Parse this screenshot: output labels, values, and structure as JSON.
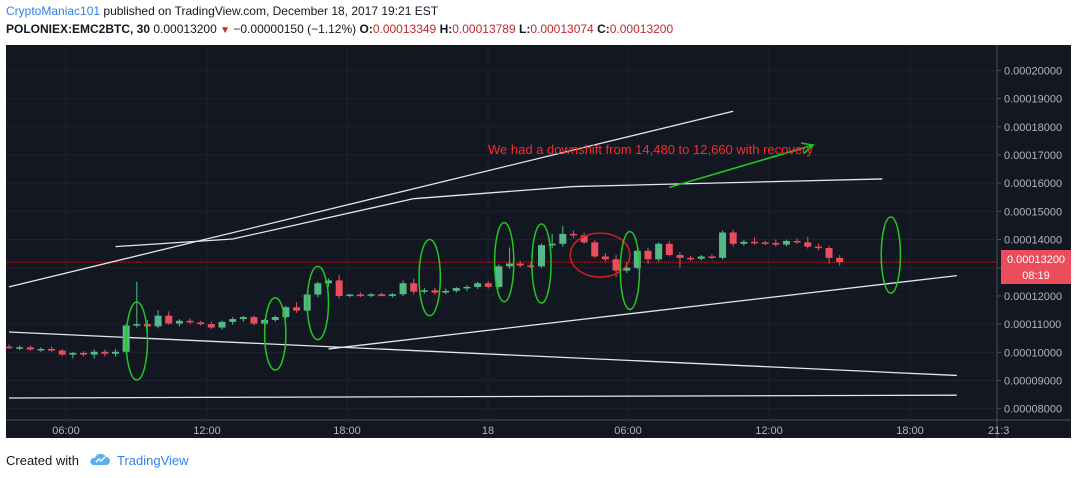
{
  "header": {
    "author": "CryptoManiac101",
    "published_text": "published on TradingView.com, December 18, 2017 19:21 EST",
    "symbol": "POLONIEX:EMC2BTC, 30",
    "last": "0.00013200",
    "change": "−0.00000150 (−1.12%)",
    "open_label": "O:",
    "open": "0.00013349",
    "high_label": "H:",
    "high": "0.00013789",
    "low_label": "L:",
    "low": "0.00013074",
    "close_label": "C:",
    "close": "0.00013200"
  },
  "footer": {
    "created_with": "Created with",
    "brand": "TradingView"
  },
  "chart_data": {
    "type": "candlestick",
    "price_range": [
      7.6e-05,
      0.000209
    ],
    "y_ticks": [
      "0.00008000",
      "0.00009000",
      "0.00010000",
      "0.00011000",
      "0.00012000",
      "0.00013000",
      "0.00014000",
      "0.00015000",
      "0.00016000",
      "0.00017000",
      "0.00018000",
      "0.00019000",
      "0.00020000"
    ],
    "x_ticks": [
      "06:00",
      "12:00",
      "18:00",
      "18",
      "06:00",
      "12:00",
      "18:00",
      "21:3"
    ],
    "last_price_label": "0.00013200",
    "countdown_label": "08:19",
    "annotation": "We had a downshift from 14,480 to 12,660 with recovery",
    "colors": {
      "up": "#53b987",
      "down": "#eb4d5c",
      "background": "#131722",
      "annotation": "#ff2a2a",
      "ellipse": "#22c722",
      "arrow": "#22c722",
      "trendline": "#e6e6e6",
      "price_line": "#c62828"
    },
    "candles": [
      {
        "o": 0.000102,
        "h": 0.0001028,
        "l": 0.0001012,
        "c": 0.0001015
      },
      {
        "o": 0.0001015,
        "h": 0.0001025,
        "l": 0.0001008,
        "c": 0.0001018
      },
      {
        "o": 0.0001018,
        "h": 0.0001024,
        "l": 0.0001006,
        "c": 0.000101
      },
      {
        "o": 0.000101,
        "h": 0.0001018,
        "l": 0.0001002,
        "c": 0.0001012
      },
      {
        "o": 0.0001012,
        "h": 0.000102,
        "l": 0.0001003,
        "c": 0.0001006
      },
      {
        "o": 0.0001006,
        "h": 0.0001012,
        "l": 9.88e-05,
        "c": 9.92e-05
      },
      {
        "o": 9.92e-05,
        "h": 0.0001002,
        "l": 9.78e-05,
        "c": 9.98e-05
      },
      {
        "o": 9.98e-05,
        "h": 0.0001004,
        "l": 9.85e-05,
        "c": 9.92e-05
      },
      {
        "o": 9.92e-05,
        "h": 0.000101,
        "l": 9.78e-05,
        "c": 0.0001002
      },
      {
        "o": 0.0001002,
        "h": 0.000101,
        "l": 9.85e-05,
        "c": 9.95e-05
      },
      {
        "o": 9.95e-05,
        "h": 0.0001012,
        "l": 9.85e-05,
        "c": 0.0001002
      },
      {
        "o": 0.0001002,
        "h": 0.00011,
        "l": 9.95e-05,
        "c": 0.0001095
      },
      {
        "o": 0.0001095,
        "h": 0.000125,
        "l": 0.0001088,
        "c": 0.00011
      },
      {
        "o": 0.00011,
        "h": 0.0001115,
        "l": 0.000108,
        "c": 0.0001092
      },
      {
        "o": 0.0001092,
        "h": 0.000115,
        "l": 0.0001085,
        "c": 0.000113
      },
      {
        "o": 0.000113,
        "h": 0.0001145,
        "l": 0.0001098,
        "c": 0.0001102
      },
      {
        "o": 0.0001102,
        "h": 0.0001118,
        "l": 0.0001092,
        "c": 0.0001112
      },
      {
        "o": 0.0001112,
        "h": 0.000112,
        "l": 0.00011,
        "c": 0.0001106
      },
      {
        "o": 0.0001106,
        "h": 0.0001112,
        "l": 0.0001095,
        "c": 0.00011
      },
      {
        "o": 0.00011,
        "h": 0.000111,
        "l": 0.0001082,
        "c": 0.0001088
      },
      {
        "o": 0.0001088,
        "h": 0.0001112,
        "l": 0.000108,
        "c": 0.0001108
      },
      {
        "o": 0.0001108,
        "h": 0.0001125,
        "l": 0.0001098,
        "c": 0.0001118
      },
      {
        "o": 0.0001118,
        "h": 0.000113,
        "l": 0.0001108,
        "c": 0.0001125
      },
      {
        "o": 0.0001125,
        "h": 0.000113,
        "l": 0.0001095,
        "c": 0.0001102
      },
      {
        "o": 0.0001102,
        "h": 0.0001118,
        "l": 0.0001095,
        "c": 0.0001115
      },
      {
        "o": 0.0001115,
        "h": 0.000113,
        "l": 0.0001108,
        "c": 0.0001125
      },
      {
        "o": 0.0001125,
        "h": 0.0001165,
        "l": 0.000112,
        "c": 0.000116
      },
      {
        "o": 0.000116,
        "h": 0.0001178,
        "l": 0.000114,
        "c": 0.0001148
      },
      {
        "o": 0.0001148,
        "h": 0.0001212,
        "l": 0.000114,
        "c": 0.0001205
      },
      {
        "o": 0.0001205,
        "h": 0.000125,
        "l": 0.0001195,
        "c": 0.0001245
      },
      {
        "o": 0.0001245,
        "h": 0.0001262,
        "l": 0.0001232,
        "c": 0.0001255
      },
      {
        "o": 0.0001255,
        "h": 0.0001275,
        "l": 0.000119,
        "c": 0.00012
      },
      {
        "o": 0.00012,
        "h": 0.0001208,
        "l": 0.0001195,
        "c": 0.0001205
      },
      {
        "o": 0.0001205,
        "h": 0.0001212,
        "l": 0.0001196,
        "c": 0.0001202
      },
      {
        "o": 0.0001202,
        "h": 0.000121,
        "l": 0.0001195,
        "c": 0.0001206
      },
      {
        "o": 0.0001206,
        "h": 0.0001212,
        "l": 0.0001198,
        "c": 0.00012
      },
      {
        "o": 0.00012,
        "h": 0.000121,
        "l": 0.0001194,
        "c": 0.0001206
      },
      {
        "o": 0.0001206,
        "h": 0.0001255,
        "l": 0.00012,
        "c": 0.0001245
      },
      {
        "o": 0.0001245,
        "h": 0.0001262,
        "l": 0.0001205,
        "c": 0.0001215
      },
      {
        "o": 0.0001215,
        "h": 0.0001228,
        "l": 0.0001208,
        "c": 0.000122
      },
      {
        "o": 0.000122,
        "h": 0.0001228,
        "l": 0.0001205,
        "c": 0.0001212
      },
      {
        "o": 0.0001212,
        "h": 0.0001226,
        "l": 0.0001206,
        "c": 0.0001218
      },
      {
        "o": 0.0001218,
        "h": 0.0001232,
        "l": 0.0001212,
        "c": 0.0001228
      },
      {
        "o": 0.0001228,
        "h": 0.0001238,
        "l": 0.0001218,
        "c": 0.0001232
      },
      {
        "o": 0.0001232,
        "h": 0.000125,
        "l": 0.0001225,
        "c": 0.0001245
      },
      {
        "o": 0.0001245,
        "h": 0.0001252,
        "l": 0.0001226,
        "c": 0.0001232
      },
      {
        "o": 0.0001232,
        "h": 0.0001312,
        "l": 0.0001225,
        "c": 0.0001305
      },
      {
        "o": 0.0001305,
        "h": 0.0001372,
        "l": 0.0001296,
        "c": 0.0001315
      },
      {
        "o": 0.0001315,
        "h": 0.0001325,
        "l": 0.00013,
        "c": 0.0001308
      },
      {
        "o": 0.0001308,
        "h": 0.000132,
        "l": 0.0001298,
        "c": 0.0001305
      },
      {
        "o": 0.0001305,
        "h": 0.0001385,
        "l": 0.00013,
        "c": 0.000138
      },
      {
        "o": 0.000138,
        "h": 0.000142,
        "l": 0.000137,
        "c": 0.0001385
      },
      {
        "o": 0.0001385,
        "h": 0.0001448,
        "l": 0.0001375,
        "c": 0.000142
      },
      {
        "o": 0.000142,
        "h": 0.0001432,
        "l": 0.0001405,
        "c": 0.0001415
      },
      {
        "o": 0.0001415,
        "h": 0.0001425,
        "l": 0.0001385,
        "c": 0.000139
      },
      {
        "o": 0.000139,
        "h": 0.0001398,
        "l": 0.0001335,
        "c": 0.000134
      },
      {
        "o": 0.000134,
        "h": 0.0001352,
        "l": 0.0001322,
        "c": 0.000133
      },
      {
        "o": 0.000133,
        "h": 0.0001345,
        "l": 0.0001266,
        "c": 0.000129
      },
      {
        "o": 0.000129,
        "h": 0.0001318,
        "l": 0.0001282,
        "c": 0.00013
      },
      {
        "o": 0.00013,
        "h": 0.0001368,
        "l": 0.0001295,
        "c": 0.000136
      },
      {
        "o": 0.000136,
        "h": 0.0001372,
        "l": 0.0001315,
        "c": 0.000133
      },
      {
        "o": 0.000133,
        "h": 0.000139,
        "l": 0.0001322,
        "c": 0.0001385
      },
      {
        "o": 0.0001385,
        "h": 0.0001395,
        "l": 0.000134,
        "c": 0.0001345
      },
      {
        "o": 0.0001345,
        "h": 0.0001355,
        "l": 0.00013,
        "c": 0.0001335
      },
      {
        "o": 0.0001335,
        "h": 0.0001342,
        "l": 0.0001325,
        "c": 0.0001332
      },
      {
        "o": 0.0001332,
        "h": 0.0001345,
        "l": 0.0001326,
        "c": 0.000134
      },
      {
        "o": 0.000134,
        "h": 0.0001348,
        "l": 0.000133,
        "c": 0.0001335
      },
      {
        "o": 0.0001335,
        "h": 0.0001432,
        "l": 0.000133,
        "c": 0.0001425
      },
      {
        "o": 0.0001425,
        "h": 0.0001435,
        "l": 0.0001375,
        "c": 0.0001385
      },
      {
        "o": 0.0001385,
        "h": 0.0001398,
        "l": 0.0001378,
        "c": 0.0001392
      },
      {
        "o": 0.0001392,
        "h": 0.0001408,
        "l": 0.0001382,
        "c": 0.000139
      },
      {
        "o": 0.000139,
        "h": 0.0001396,
        "l": 0.000138,
        "c": 0.0001388
      },
      {
        "o": 0.0001388,
        "h": 0.00014,
        "l": 0.0001375,
        "c": 0.0001382
      },
      {
        "o": 0.0001382,
        "h": 0.00014,
        "l": 0.0001375,
        "c": 0.0001395
      },
      {
        "o": 0.0001395,
        "h": 0.0001405,
        "l": 0.0001385,
        "c": 0.000139
      },
      {
        "o": 0.000139,
        "h": 0.000141,
        "l": 0.0001368,
        "c": 0.0001375
      },
      {
        "o": 0.0001375,
        "h": 0.0001385,
        "l": 0.0001362,
        "c": 0.000137
      },
      {
        "o": 0.000137,
        "h": 0.0001378,
        "l": 0.0001315,
        "c": 0.0001335
      },
      {
        "o": 0.0001335,
        "h": 0.0001345,
        "l": 0.0001307,
        "c": 0.000132
      }
    ],
    "trend_lines": [
      {
        "t1": 0,
        "p1": 0.0001232,
        "t2": 68,
        "p2": 0.0001855
      },
      {
        "t1": 10,
        "p1": 0.0001375,
        "t2": 21,
        "p2": 0.0001402
      },
      {
        "t1": 21,
        "p1": 0.0001402,
        "t2": 38,
        "p2": 0.0001545
      },
      {
        "t1": 38,
        "p1": 0.0001545,
        "t2": 53,
        "p2": 0.0001588
      },
      {
        "t1": 53,
        "p1": 0.0001588,
        "t2": 82,
        "p2": 0.0001615
      },
      {
        "t1": 30,
        "p1": 0.0001012,
        "t2": 89,
        "p2": 0.0001272
      },
      {
        "t1": 0,
        "p1": 0.0001072,
        "t2": 89,
        "p2": 9.18e-05
      },
      {
        "t1": 0,
        "p1": 8.38e-05,
        "t2": 89,
        "p2": 8.48e-05
      }
    ],
    "ellipses": [
      {
        "t": 12.0,
        "p": 0.000104,
        "rt": 1.0,
        "rp": 1.38e-05
      },
      {
        "t": 25.0,
        "p": 0.0001065,
        "rt": 1.0,
        "rp": 1.28e-05
      },
      {
        "t": 29.0,
        "p": 0.0001175,
        "rt": 1.0,
        "rp": 1.3e-05
      },
      {
        "t": 39.5,
        "p": 0.0001265,
        "rt": 1.0,
        "rp": 1.35e-05
      },
      {
        "t": 46.5,
        "p": 0.000132,
        "rt": 0.9,
        "rp": 1.4e-05
      },
      {
        "t": 50.0,
        "p": 0.0001315,
        "rt": 0.9,
        "rp": 1.4e-05
      },
      {
        "t": 55.5,
        "p": 0.0001345,
        "rt": 2.8,
        "rp": 7.8e-06
      },
      {
        "t": 58.3,
        "p": 0.000129,
        "rt": 0.9,
        "rp": 1.38e-05
      },
      {
        "t": 82.8,
        "p": 0.0001345,
        "rt": 0.9,
        "rp": 1.35e-05
      }
    ],
    "arrow": {
      "t1": 62,
      "p1": 0.0001585,
      "t2": 75.5,
      "p2": 0.0001735
    }
  }
}
